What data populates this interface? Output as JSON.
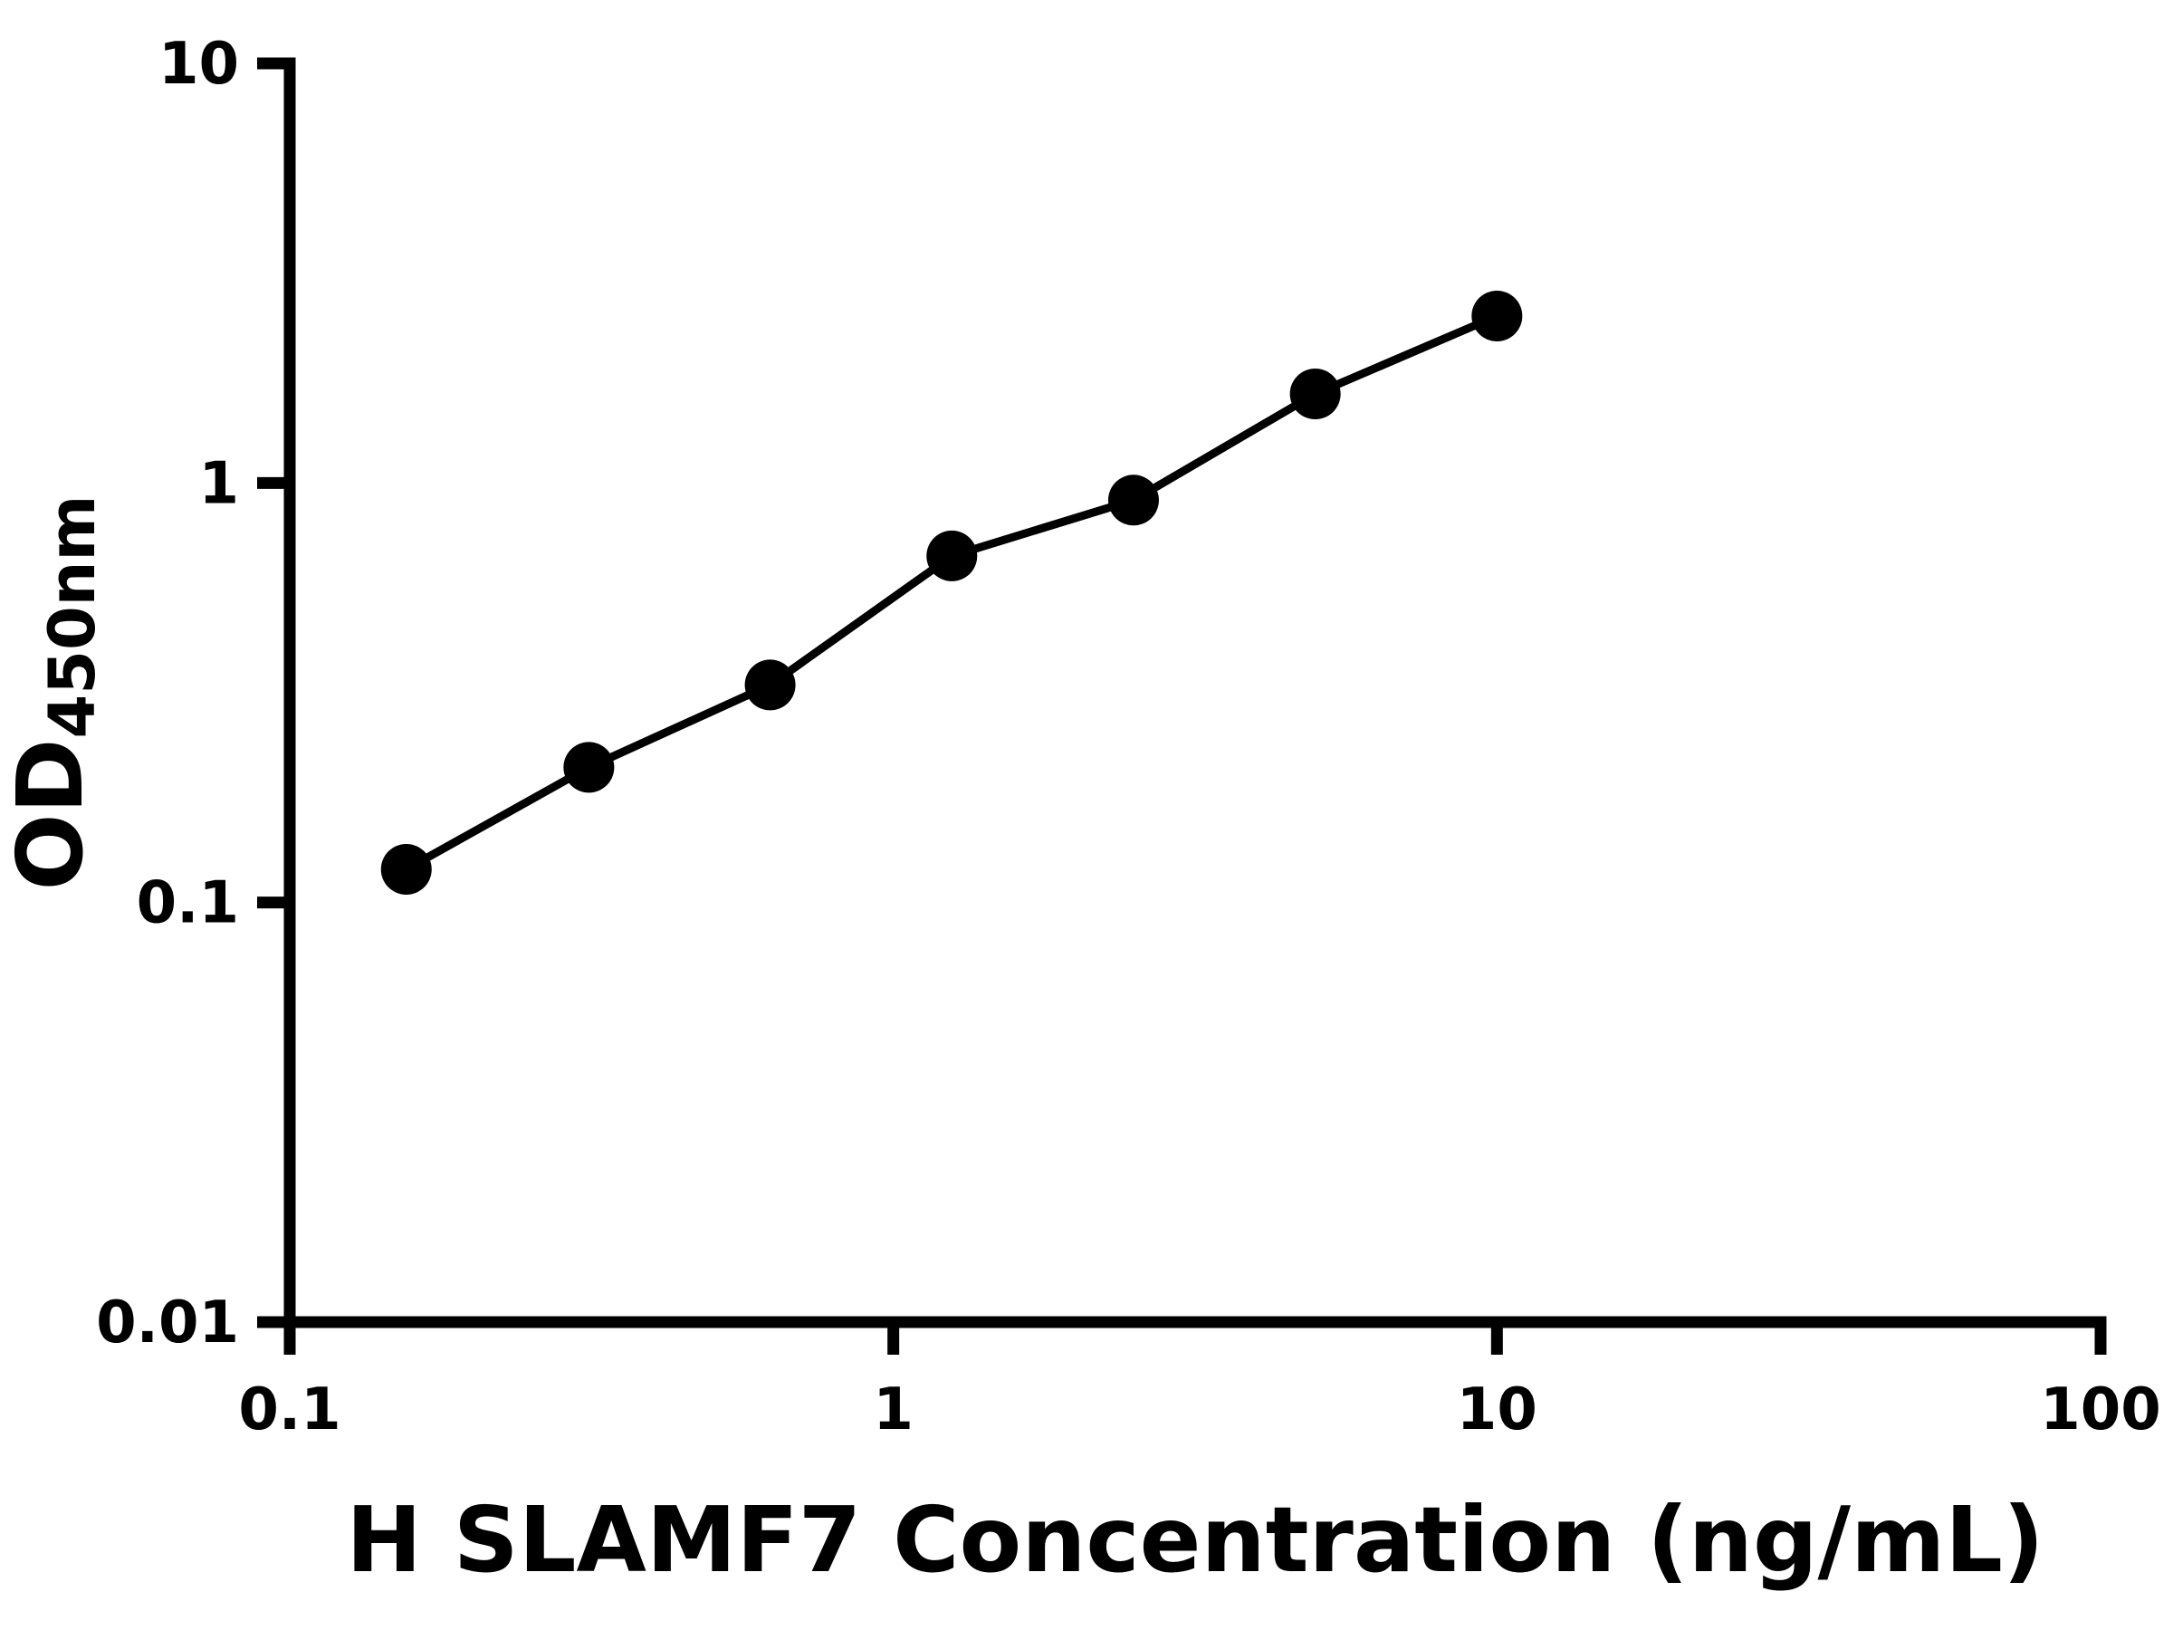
{
  "figure": {
    "background": "#ffffff"
  },
  "chart_data": {
    "type": "scatter",
    "title": "",
    "xlabel": "H SLAMF7 Concentration (ng/mL)",
    "ylabel_main": "OD",
    "ylabel_sub": "450nm",
    "xscale": "log",
    "yscale": "log",
    "xlim": [
      0.1,
      100
    ],
    "ylim": [
      0.01,
      10
    ],
    "x_ticks": [
      "0.1",
      "1",
      "10",
      "100"
    ],
    "y_ticks": [
      "0.01",
      "0.1",
      "1",
      "10"
    ],
    "x": [
      0.156,
      0.313,
      0.625,
      1.25,
      2.5,
      5,
      10
    ],
    "y": [
      0.12,
      0.21,
      0.33,
      0.67,
      0.91,
      1.63,
      2.5
    ],
    "marker": "circle",
    "marker_radius": 28,
    "marker_color": "#000000",
    "line_color": "#000000",
    "axis_color": "#000000",
    "grid": false,
    "legend": "none"
  }
}
